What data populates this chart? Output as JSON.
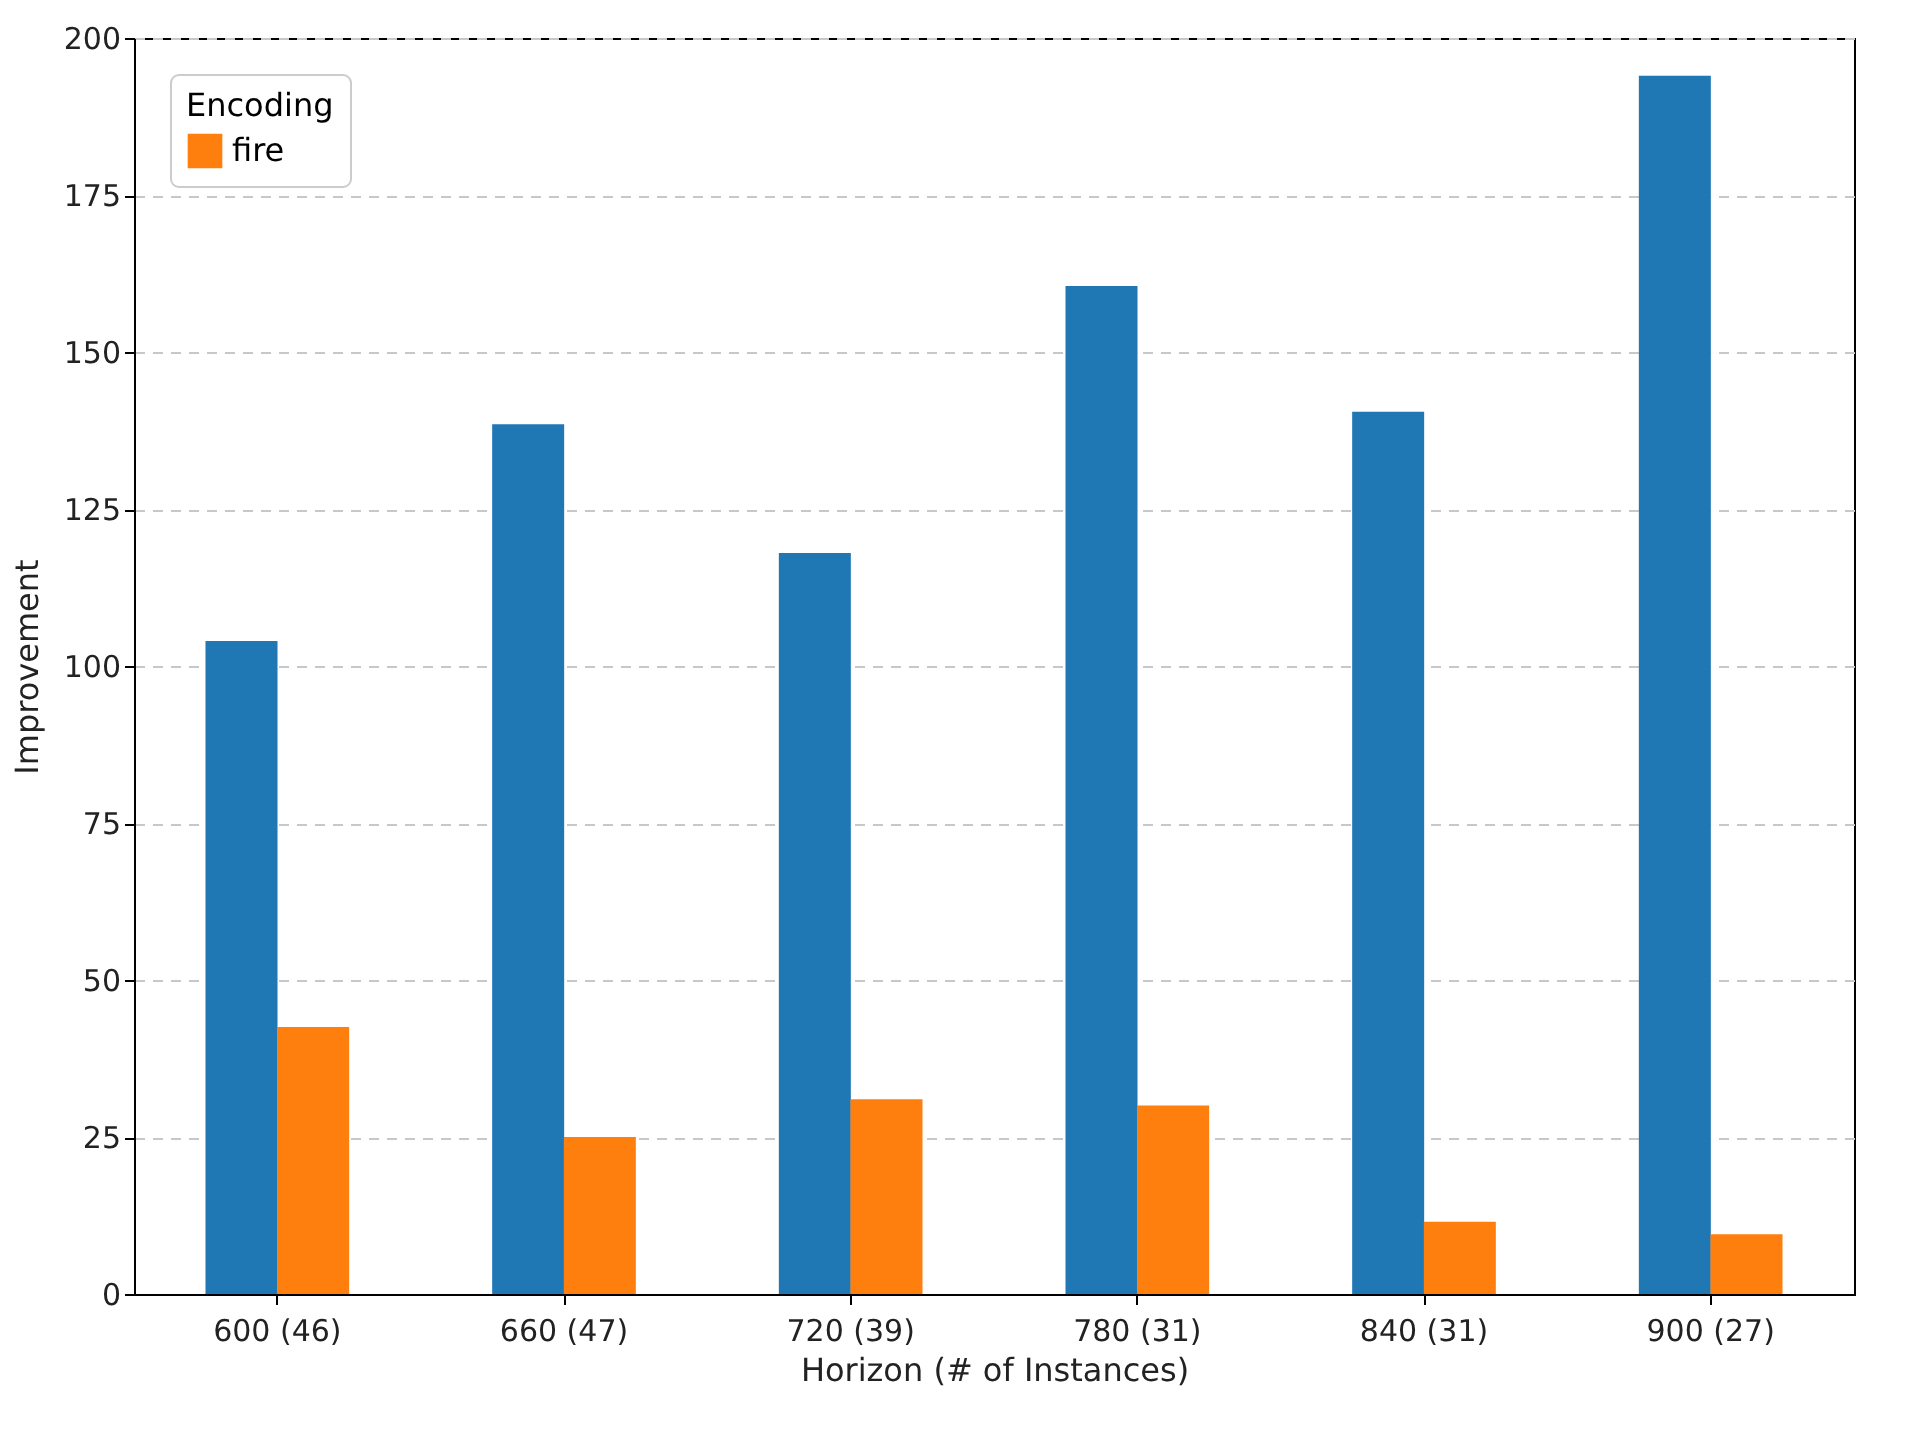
{
  "chart_data": {
    "type": "bar",
    "xlabel": "Horizon (# of Instances)",
    "ylabel": "Improvement",
    "legend_title": "Encoding",
    "categories": [
      "600 (46)",
      "660 (47)",
      "720 (39)",
      "780 (31)",
      "840 (31)",
      "900 (27)"
    ],
    "series": [
      {
        "color": "#1f77b4",
        "values": [
          104,
          138.5,
          118,
          160.5,
          140.5,
          194
        ]
      },
      {
        "name": "fire",
        "color": "#ff7f0e",
        "values": [
          42.5,
          25,
          31,
          30,
          11.5,
          9.5
        ]
      }
    ],
    "ylim": [
      0,
      200
    ],
    "yticks": [
      0,
      25,
      50,
      75,
      100,
      125,
      150,
      175,
      200
    ],
    "grid": "y",
    "legend": "top left"
  }
}
